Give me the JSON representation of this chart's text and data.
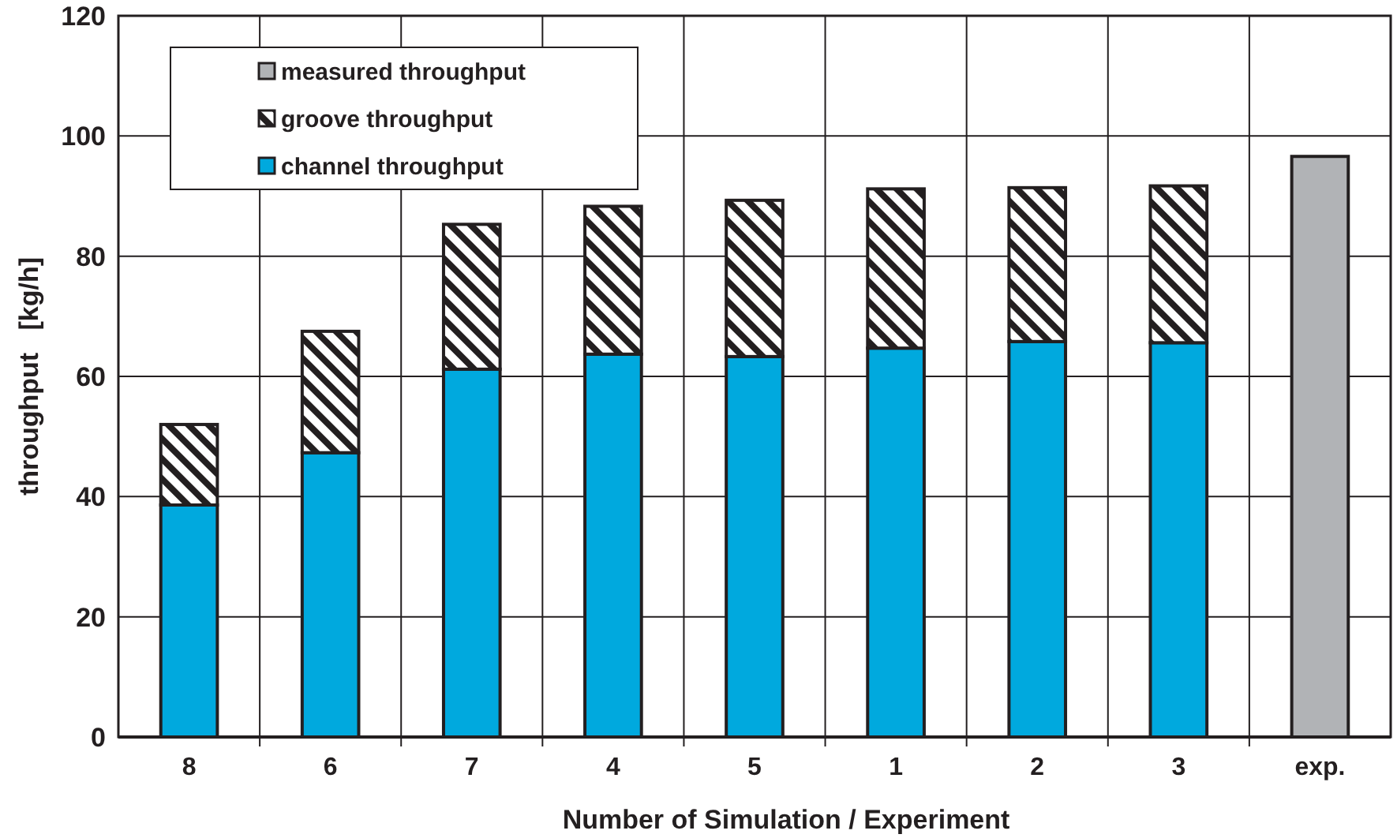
{
  "chart_data": {
    "type": "bar",
    "stacked": true,
    "xlabel": "Number of Simulation / Experiment",
    "ylabel": "throughput   [kg/h]",
    "categories": [
      "8",
      "6",
      "7",
      "4",
      "5",
      "1",
      "2",
      "3",
      "exp."
    ],
    "series": [
      {
        "name": "channel throughput",
        "color": "#00a9de",
        "values": [
          38.6,
          47.3,
          61.2,
          63.7,
          63.3,
          64.7,
          65.8,
          65.6,
          null
        ]
      },
      {
        "name": "groove throughput",
        "color": "#231f20",
        "values": [
          13.4,
          20.2,
          24.1,
          24.6,
          26.0,
          26.5,
          25.6,
          26.1,
          null
        ]
      },
      {
        "name": "measured throughput",
        "color": "#b1b3b6",
        "values": [
          null,
          null,
          null,
          null,
          null,
          null,
          null,
          null,
          96.6
        ]
      }
    ],
    "ylim": [
      0,
      120
    ],
    "yticks": [
      0,
      20,
      40,
      60,
      80,
      100,
      120
    ],
    "grid": true,
    "legend": "top left"
  }
}
